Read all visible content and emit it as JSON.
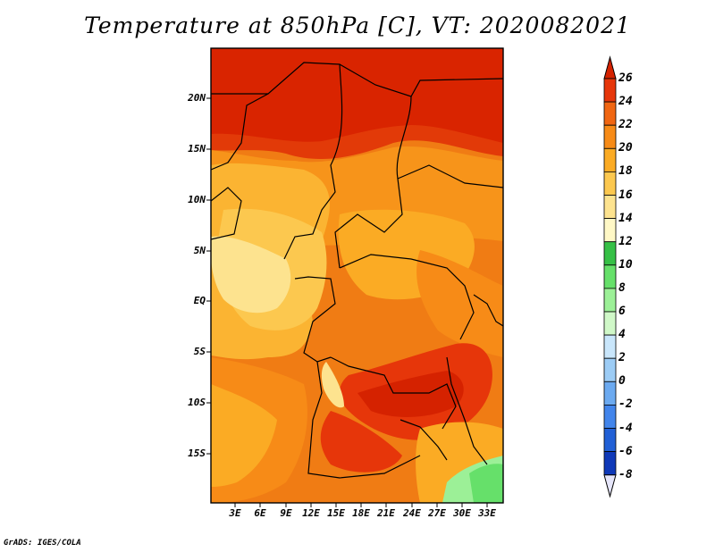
{
  "title": "Temperature at 850hPa [C], VT: 2020082021",
  "y_ticks": [
    "20N",
    "15N",
    "10N",
    "5N",
    "EQ",
    "5S",
    "10S",
    "15S"
  ],
  "x_ticks": [
    "3E",
    "6E",
    "9E",
    "12E",
    "15E",
    "18E",
    "21E",
    "24E",
    "27E",
    "30E",
    "33E"
  ],
  "colorbar": {
    "labels": [
      "26",
      "24",
      "22",
      "20",
      "18",
      "16",
      "14",
      "12",
      "10",
      "8",
      "6",
      "4",
      "2",
      "0",
      "-2",
      "-4",
      "-6",
      "-8"
    ],
    "colors": [
      "#d52200",
      "#e6360a",
      "#f06612",
      "#f78b17",
      "#fbab24",
      "#fcc84f",
      "#fde38f",
      "#fff8c6",
      "#36c046",
      "#66e06a",
      "#9cf097",
      "#d0f8c8",
      "#c9e6fb",
      "#9cccf5",
      "#6caaf0",
      "#4285eb",
      "#2160d6",
      "#0f39b8",
      "#00168a"
    ]
  },
  "footer": "GrADS: IGES/COLA"
}
